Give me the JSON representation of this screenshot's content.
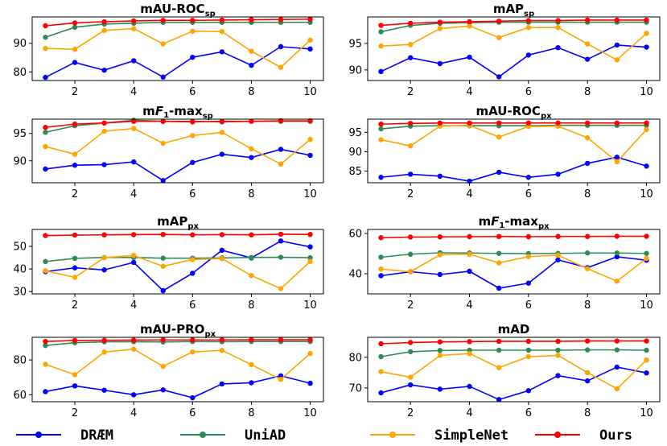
{
  "chart_data": [
    {
      "type": "line",
      "title": "mAU-ROC",
      "title_sub": "sp",
      "x": [
        1,
        2,
        3,
        4,
        5,
        6,
        7,
        8,
        9,
        10
      ],
      "xticks": [
        2,
        4,
        6,
        8,
        10
      ],
      "yticks": [
        80,
        90
      ],
      "ylim": [
        77,
        99.2
      ],
      "series": [
        {
          "name": "DRÆM",
          "values": [
            78.1,
            83.3,
            80.6,
            83.9,
            78.2,
            85.1,
            87.0,
            82.3,
            88.8,
            88.0
          ]
        },
        {
          "name": "UniAD",
          "values": [
            92.1,
            95.6,
            96.7,
            97.0,
            97.3,
            97.3,
            97.3,
            97.3,
            97.3,
            97.3
          ]
        },
        {
          "name": "SimpleNet",
          "values": [
            88.2,
            87.9,
            94.5,
            95.1,
            89.8,
            94.2,
            94.1,
            87.2,
            81.6,
            91.1
          ]
        },
        {
          "name": "Ours",
          "values": [
            96.1,
            97.1,
            97.5,
            97.8,
            98.0,
            98.0,
            98.1,
            98.2,
            98.3,
            98.4
          ]
        }
      ]
    },
    {
      "type": "line",
      "title": "mAP",
      "title_sub": "sp",
      "x": [
        1,
        2,
        3,
        4,
        5,
        6,
        7,
        8,
        9,
        10
      ],
      "xticks": [
        2,
        4,
        6,
        8,
        10
      ],
      "yticks": [
        90,
        95
      ],
      "ylim": [
        88,
        100
      ],
      "series": [
        {
          "name": "DRÆM",
          "values": [
            89.7,
            92.3,
            91.2,
            92.4,
            88.7,
            92.8,
            94.2,
            92.0,
            94.7,
            94.3
          ]
        },
        {
          "name": "UniAD",
          "values": [
            97.2,
            98.4,
            98.8,
            98.9,
            99.0,
            99.0,
            99.0,
            99.0,
            99.0,
            99.0
          ]
        },
        {
          "name": "SimpleNet",
          "values": [
            94.5,
            94.8,
            97.8,
            98.3,
            96.1,
            98.0,
            98.0,
            94.9,
            91.9,
            96.9
          ]
        },
        {
          "name": "Ours",
          "values": [
            98.4,
            98.8,
            99.0,
            99.1,
            99.2,
            99.3,
            99.3,
            99.4,
            99.4,
            99.4
          ]
        }
      ]
    },
    {
      "type": "line",
      "title": "mF1-max",
      "title_sub": "sp",
      "x": [
        1,
        2,
        3,
        4,
        5,
        6,
        7,
        8,
        9,
        10
      ],
      "xticks": [
        2,
        4,
        6,
        8,
        10
      ],
      "yticks": [
        90,
        95
      ],
      "ylim": [
        86,
        97.6
      ],
      "series": [
        {
          "name": "DRÆM",
          "values": [
            88.5,
            89.2,
            89.3,
            89.8,
            86.4,
            89.7,
            91.2,
            90.6,
            92.1,
            91.0
          ]
        },
        {
          "name": "UniAD",
          "values": [
            95.2,
            96.4,
            96.9,
            97.4,
            97.2,
            97.2,
            97.1,
            97.2,
            97.2,
            97.2
          ]
        },
        {
          "name": "SimpleNet",
          "values": [
            92.6,
            91.2,
            95.4,
            95.9,
            93.2,
            94.6,
            95.2,
            92.2,
            89.4,
            93.9
          ]
        },
        {
          "name": "Ours",
          "values": [
            96.1,
            96.7,
            96.9,
            97.2,
            97.2,
            97.1,
            97.2,
            97.2,
            97.3,
            97.3
          ]
        }
      ]
    },
    {
      "type": "line",
      "title": "mAU-ROC",
      "title_sub": "px",
      "x": [
        1,
        2,
        3,
        4,
        5,
        6,
        7,
        8,
        9,
        10
      ],
      "xticks": [
        2,
        4,
        6,
        8,
        10
      ],
      "yticks": [
        85,
        90,
        95
      ],
      "ylim": [
        82,
        98.4
      ],
      "series": [
        {
          "name": "DRÆM",
          "values": [
            83.4,
            84.2,
            83.7,
            82.4,
            84.7,
            83.4,
            84.2,
            87.0,
            88.6,
            86.3
          ]
        },
        {
          "name": "UniAD",
          "values": [
            95.9,
            96.6,
            96.7,
            96.7,
            96.7,
            96.7,
            96.8,
            96.8,
            96.8,
            96.8
          ]
        },
        {
          "name": "SimpleNet",
          "values": [
            93.1,
            91.5,
            96.6,
            96.8,
            93.8,
            96.5,
            96.6,
            93.6,
            87.4,
            95.7
          ]
        },
        {
          "name": "Ours",
          "values": [
            97.1,
            97.3,
            97.4,
            97.4,
            97.4,
            97.4,
            97.4,
            97.4,
            97.4,
            97.4
          ]
        }
      ]
    },
    {
      "type": "line",
      "title": "mAP",
      "title_sub": "px",
      "x": [
        1,
        2,
        3,
        4,
        5,
        6,
        7,
        8,
        9,
        10
      ],
      "xticks": [
        2,
        4,
        6,
        8,
        10
      ],
      "yticks": [
        30,
        40,
        50
      ],
      "ylim": [
        29,
        57.5
      ],
      "series": [
        {
          "name": "DRÆM",
          "values": [
            38.8,
            40.5,
            39.6,
            42.9,
            30.4,
            38.1,
            48.3,
            44.9,
            52.4,
            49.8
          ]
        },
        {
          "name": "UniAD",
          "values": [
            43.3,
            44.7,
            45.1,
            45.1,
            44.8,
            44.8,
            44.9,
            45.1,
            45.2,
            45.0
          ]
        },
        {
          "name": "SimpleNet",
          "values": [
            39.2,
            36.3,
            45.0,
            46.0,
            41.2,
            44.2,
            44.6,
            37.1,
            31.3,
            43.3
          ]
        },
        {
          "name": "Ours",
          "values": [
            54.8,
            55.0,
            55.1,
            55.2,
            55.3,
            55.1,
            55.2,
            55.1,
            55.4,
            55.3
          ]
        }
      ]
    },
    {
      "type": "line",
      "title": "mF1-max",
      "title_sub": "px",
      "x": [
        1,
        2,
        3,
        4,
        5,
        6,
        7,
        8,
        9,
        10
      ],
      "xticks": [
        2,
        4,
        6,
        8,
        10
      ],
      "yticks": [
        40,
        60
      ],
      "ylim": [
        30,
        62
      ],
      "series": [
        {
          "name": "DRÆM",
          "values": [
            39.0,
            41.0,
            39.6,
            41.2,
            32.8,
            35.3,
            46.9,
            43.0,
            48.4,
            46.7
          ]
        },
        {
          "name": "UniAD",
          "values": [
            48.2,
            49.7,
            50.4,
            50.3,
            50.1,
            50.0,
            50.1,
            50.3,
            50.3,
            50.1
          ]
        },
        {
          "name": "SimpleNet",
          "values": [
            42.3,
            41.0,
            49.4,
            49.7,
            45.4,
            48.5,
            49.2,
            42.5,
            36.3,
            47.6
          ]
        },
        {
          "name": "Ours",
          "values": [
            57.9,
            58.2,
            58.3,
            58.4,
            58.5,
            58.4,
            58.5,
            58.5,
            58.6,
            58.6
          ]
        }
      ]
    },
    {
      "type": "line",
      "title": "mAU-PRO",
      "title_sub": "px",
      "x": [
        1,
        2,
        3,
        4,
        5,
        6,
        7,
        8,
        9,
        10
      ],
      "xticks": [
        2,
        4,
        6,
        8,
        10
      ],
      "yticks": [
        60,
        80
      ],
      "ylim": [
        56,
        93
      ],
      "series": [
        {
          "name": "DRÆM",
          "values": [
            61.8,
            65.1,
            62.6,
            60.0,
            62.8,
            58.3,
            66.2,
            66.9,
            70.9,
            66.6
          ]
        },
        {
          "name": "UniAD",
          "values": [
            88.3,
            89.9,
            90.4,
            90.5,
            90.3,
            90.6,
            90.5,
            90.6,
            90.6,
            90.6
          ]
        },
        {
          "name": "SimpleNet",
          "values": [
            77.5,
            71.5,
            84.5,
            86.2,
            76.3,
            84.6,
            85.5,
            77.3,
            68.8,
            83.7
          ]
        },
        {
          "name": "Ours",
          "values": [
            90.6,
            91.2,
            91.3,
            91.4,
            91.5,
            91.5,
            91.5,
            91.6,
            91.6,
            91.6
          ]
        }
      ]
    },
    {
      "type": "line",
      "title": "mAD",
      "title_sub": "",
      "x": [
        1,
        2,
        3,
        4,
        5,
        6,
        7,
        8,
        9,
        10
      ],
      "xticks": [
        2,
        4,
        6,
        8,
        10
      ],
      "yticks": [
        70,
        80
      ],
      "ylim": [
        65.5,
        86.5
      ],
      "series": [
        {
          "name": "DRÆM",
          "values": [
            68.4,
            71.0,
            69.6,
            70.5,
            66.2,
            69.1,
            74.0,
            72.3,
            76.8,
            74.9
          ]
        },
        {
          "name": "UniAD",
          "values": [
            80.2,
            81.8,
            82.2,
            82.3,
            82.3,
            82.3,
            82.3,
            82.4,
            82.4,
            82.3
          ]
        },
        {
          "name": "SimpleNet",
          "values": [
            75.3,
            73.5,
            80.6,
            81.2,
            76.6,
            80.2,
            80.6,
            75.0,
            69.7,
            79.1
          ]
        },
        {
          "name": "Ours",
          "values": [
            84.4,
            84.8,
            85.0,
            85.1,
            85.2,
            85.2,
            85.2,
            85.3,
            85.3,
            85.3
          ]
        }
      ]
    }
  ],
  "legend": {
    "placement": "bottom",
    "entries": [
      {
        "label": "DRÆM",
        "color": "#0000ff"
      },
      {
        "label": "UniAD",
        "color": "#2e8b57"
      },
      {
        "label": "SimpleNet",
        "color": "#ffa500"
      },
      {
        "label": "Ours",
        "color": "#ff0000"
      }
    ]
  },
  "colors": {
    "DRÆM": "#0000ff",
    "UniAD": "#2e8b57",
    "SimpleNet": "#ffa500",
    "Ours": "#ff0000"
  }
}
